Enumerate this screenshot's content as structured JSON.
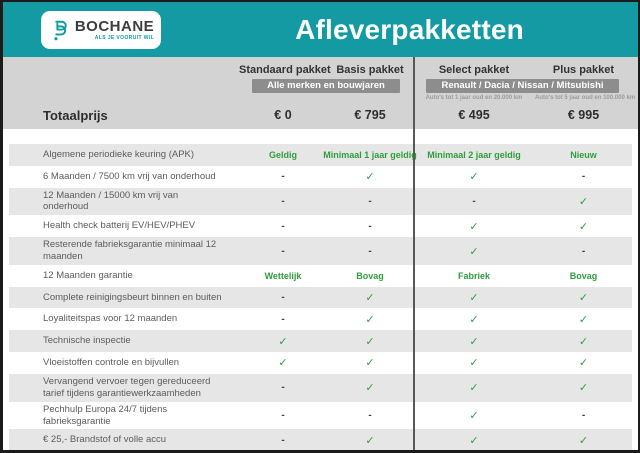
{
  "header": {
    "logo": {
      "name": "BOCHANE",
      "tagline": "ALS JE VOORUIT WIL"
    },
    "title": "Afleverpakketten"
  },
  "table": {
    "total_label": "Totaalprijs",
    "columns": [
      {
        "name": "Standaard pakket",
        "price": "€ 0"
      },
      {
        "name": "Basis pakket",
        "price": "€ 795"
      },
      {
        "name": "Select pakket",
        "note": "Auto's tot 1 jaar oud en 20.000 km",
        "price": "€ 495"
      },
      {
        "name": "Plus pakket",
        "note": "Auto's tot 5 jaar oud en 100.000 km",
        "price": "€ 995"
      }
    ],
    "groups": [
      {
        "label": "Alle merken en bouwjaren"
      },
      {
        "label": "Renault / Dacia / Nissan / Mitsubishi"
      }
    ],
    "rows": [
      {
        "label": "Algemene periodieke keuring (APK)",
        "values": [
          "Geldig",
          "Minimaal 1 jaar geldig",
          "Minimaal 2 jaar geldig",
          "Nieuw"
        ]
      },
      {
        "label": "6 Maanden / 7500 km vrij van onderhoud",
        "values": [
          "-",
          "✓",
          "✓",
          "-"
        ]
      },
      {
        "label": "12 Maanden / 15000 km vrij van onderhoud",
        "values": [
          "-",
          "-",
          "-",
          "✓"
        ]
      },
      {
        "label": "Health check batterij EV/HEV/PHEV",
        "values": [
          "-",
          "-",
          "✓",
          "✓"
        ]
      },
      {
        "label": "Resterende fabrieksgarantie minimaal 12 maanden",
        "values": [
          "-",
          "-",
          "✓",
          "-"
        ]
      },
      {
        "label": "12 Maanden  garantie",
        "values": [
          "Wettelijk",
          "Bovag",
          "Fabriek",
          "Bovag"
        ]
      },
      {
        "label": "Complete reinigingsbeurt binnen en buiten",
        "values": [
          "-",
          "✓",
          "✓",
          "✓"
        ]
      },
      {
        "label": "Loyaliteitspas voor 12 maanden",
        "values": [
          "-",
          "✓",
          "✓",
          "✓"
        ]
      },
      {
        "label": "Technische inspectie",
        "values": [
          "✓",
          "✓",
          "✓",
          "✓"
        ]
      },
      {
        "label": "Vloeistoffen controle en bijvullen",
        "values": [
          "✓",
          "✓",
          "✓",
          "✓"
        ]
      },
      {
        "label": "Vervangend vervoer tegen gereduceerd tarief tijdens garantiewerkzaamheden",
        "values": [
          "-",
          "✓",
          "✓",
          "✓"
        ]
      },
      {
        "label": "Pechhulp Europa 24/7 tijdens fabrieksgarantie",
        "values": [
          "-",
          "-",
          "✓",
          "-"
        ]
      },
      {
        "label": "€ 25,- Brandstof of volle accu",
        "values": [
          "-",
          "✓",
          "✓",
          "✓"
        ]
      }
    ]
  },
  "colors": {
    "teal": "#139aa3",
    "green": "#2f9e3c",
    "badge_gray": "#8d8d8d",
    "head_gray": "#d3d3d3",
    "row_gray": "#e6e6e6"
  }
}
